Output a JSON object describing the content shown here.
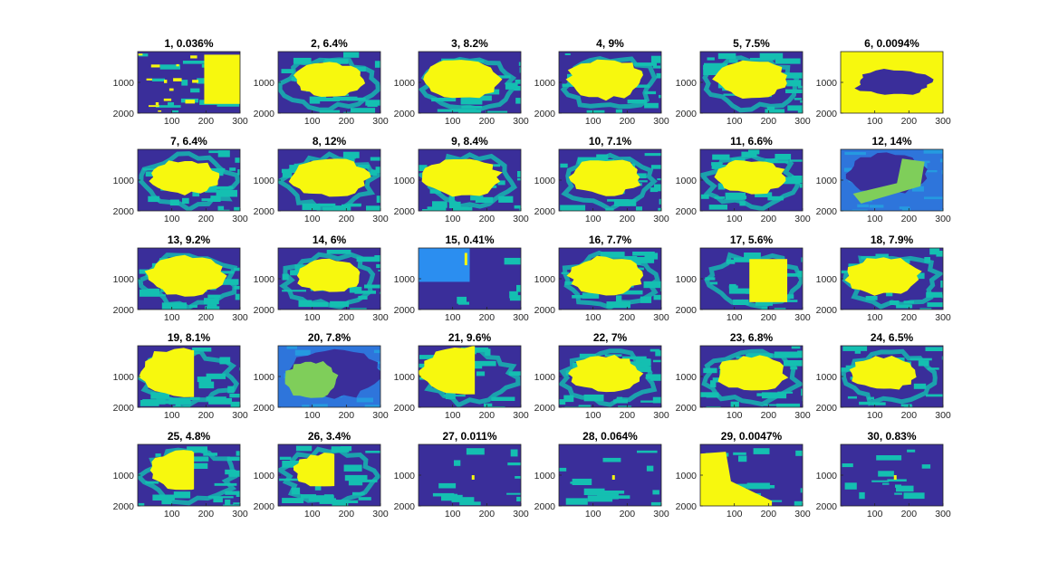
{
  "palette": {
    "background": "#3a2e9a",
    "teal": "#14bfb1",
    "yellow": "#f7f80e",
    "light_blue": "#2b8ef0",
    "green": "#7fce5a",
    "axis": "#262626"
  },
  "chart_data": {
    "type": "heatmap",
    "layout": {
      "rows": 5,
      "cols": 6
    },
    "x_ticks": [
      "100",
      "200",
      "300"
    ],
    "y_ticks": [
      "1000",
      "2000"
    ],
    "xlim": [
      0,
      300
    ],
    "ylim": [
      0,
      2000
    ],
    "y_direction": "reversed",
    "panels": [
      {
        "title": "1, 0.036%",
        "index": 1,
        "percent": 0.036,
        "region": "scattered",
        "background": "blue"
      },
      {
        "title": "2, 6.4%",
        "index": 2,
        "percent": 6.4,
        "region": "blob",
        "background": "blue"
      },
      {
        "title": "3, 8.2%",
        "index": 3,
        "percent": 8.2,
        "region": "blob",
        "background": "blue"
      },
      {
        "title": "4, 9%",
        "index": 4,
        "percent": 9,
        "region": "blob",
        "background": "blue"
      },
      {
        "title": "5, 7.5%",
        "index": 5,
        "percent": 7.5,
        "region": "blob",
        "background": "blue"
      },
      {
        "title": "6, 0.0094%",
        "index": 6,
        "percent": 0.0094,
        "region": "inverse",
        "background": "yellow"
      },
      {
        "title": "7, 6.4%",
        "index": 7,
        "percent": 6.4,
        "region": "blob",
        "background": "blue"
      },
      {
        "title": "8, 12%",
        "index": 8,
        "percent": 12,
        "region": "blob",
        "background": "blue"
      },
      {
        "title": "9, 8.4%",
        "index": 9,
        "percent": 8.4,
        "region": "blob",
        "background": "blue"
      },
      {
        "title": "10, 7.1%",
        "index": 10,
        "percent": 7.1,
        "region": "blob",
        "background": "blue"
      },
      {
        "title": "11, 6.6%",
        "index": 11,
        "percent": 6.6,
        "region": "blob",
        "background": "blue"
      },
      {
        "title": "12, 14%",
        "index": 12,
        "percent": 14,
        "region": "green-band",
        "background": "blue"
      },
      {
        "title": "13, 9.2%",
        "index": 13,
        "percent": 9.2,
        "region": "blob",
        "background": "blue"
      },
      {
        "title": "14, 6%",
        "index": 14,
        "percent": 6,
        "region": "blob",
        "background": "blue"
      },
      {
        "title": "15, 0.41%",
        "index": 15,
        "percent": 0.41,
        "region": "sliver",
        "background": "blue"
      },
      {
        "title": "16, 7.7%",
        "index": 16,
        "percent": 7.7,
        "region": "blob",
        "background": "blue"
      },
      {
        "title": "17, 5.6%",
        "index": 17,
        "percent": 5.6,
        "region": "rectangle",
        "background": "blue"
      },
      {
        "title": "18, 7.9%",
        "index": 18,
        "percent": 7.9,
        "region": "blob",
        "background": "blue"
      },
      {
        "title": "19, 8.1%",
        "index": 19,
        "percent": 8.1,
        "region": "cut-blob",
        "background": "blue"
      },
      {
        "title": "20, 7.8%",
        "index": 20,
        "percent": 7.8,
        "region": "green-blob",
        "background": "blue"
      },
      {
        "title": "21, 9.6%",
        "index": 21,
        "percent": 9.6,
        "region": "cut-blob",
        "background": "blue"
      },
      {
        "title": "22, 7%",
        "index": 22,
        "percent": 7,
        "region": "blob",
        "background": "blue"
      },
      {
        "title": "23, 6.8%",
        "index": 23,
        "percent": 6.8,
        "region": "blob",
        "background": "blue"
      },
      {
        "title": "24, 6.5%",
        "index": 24,
        "percent": 6.5,
        "region": "blob",
        "background": "blue"
      },
      {
        "title": "25, 4.8%",
        "index": 25,
        "percent": 4.8,
        "region": "cut-blob",
        "background": "blue"
      },
      {
        "title": "26, 3.4%",
        "index": 26,
        "percent": 3.4,
        "region": "cut-blob",
        "background": "blue"
      },
      {
        "title": "27, 0.011%",
        "index": 27,
        "percent": 0.011,
        "region": "dot",
        "background": "blue"
      },
      {
        "title": "28, 0.064%",
        "index": 28,
        "percent": 0.064,
        "region": "dot",
        "background": "blue"
      },
      {
        "title": "29, 0.0047%",
        "index": 29,
        "percent": 0.0047,
        "region": "side",
        "background": "blue"
      },
      {
        "title": "30, 0.83%",
        "index": 30,
        "percent": 0.83,
        "region": "dot",
        "background": "blue"
      }
    ]
  }
}
